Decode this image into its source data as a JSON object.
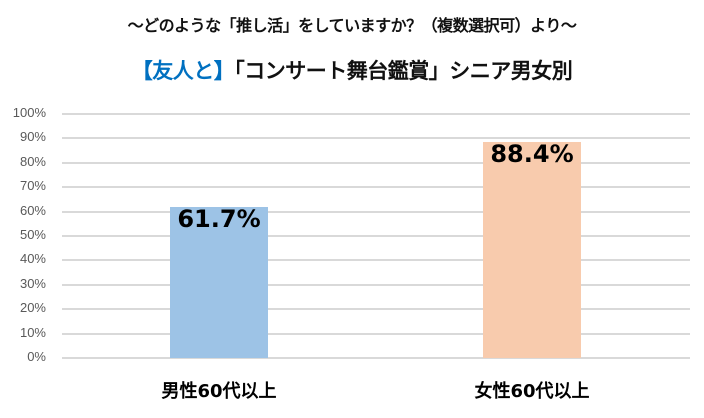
{
  "header": {
    "subtitle": "～どのような「推し活」をしていますか？（複数選択可）より～",
    "title_accent": "【友人と】",
    "title_rest": "「コンサート舞台鑑賞」シニア男女別",
    "accent_color": "#0070C0"
  },
  "chart_data": {
    "type": "bar",
    "title": "【友人と】「コンサート舞台鑑賞」シニア男女別",
    "subtitle": "～どのような「推し活」をしていますか？（複数選択可）より～",
    "categories": [
      "男性60代以上",
      "女性60代以上"
    ],
    "values": [
      61.7,
      88.4
    ],
    "value_labels": [
      "61.7%",
      "88.4%"
    ],
    "colors": [
      "#9DC3E6",
      "#F8CBAD"
    ],
    "xlabel": "",
    "ylabel": "",
    "ylim": [
      0,
      100
    ],
    "yticks": [
      "0%",
      "10%",
      "20%",
      "30%",
      "40%",
      "50%",
      "60%",
      "70%",
      "80%",
      "90%",
      "100%"
    ],
    "grid": true,
    "legend": "none"
  }
}
